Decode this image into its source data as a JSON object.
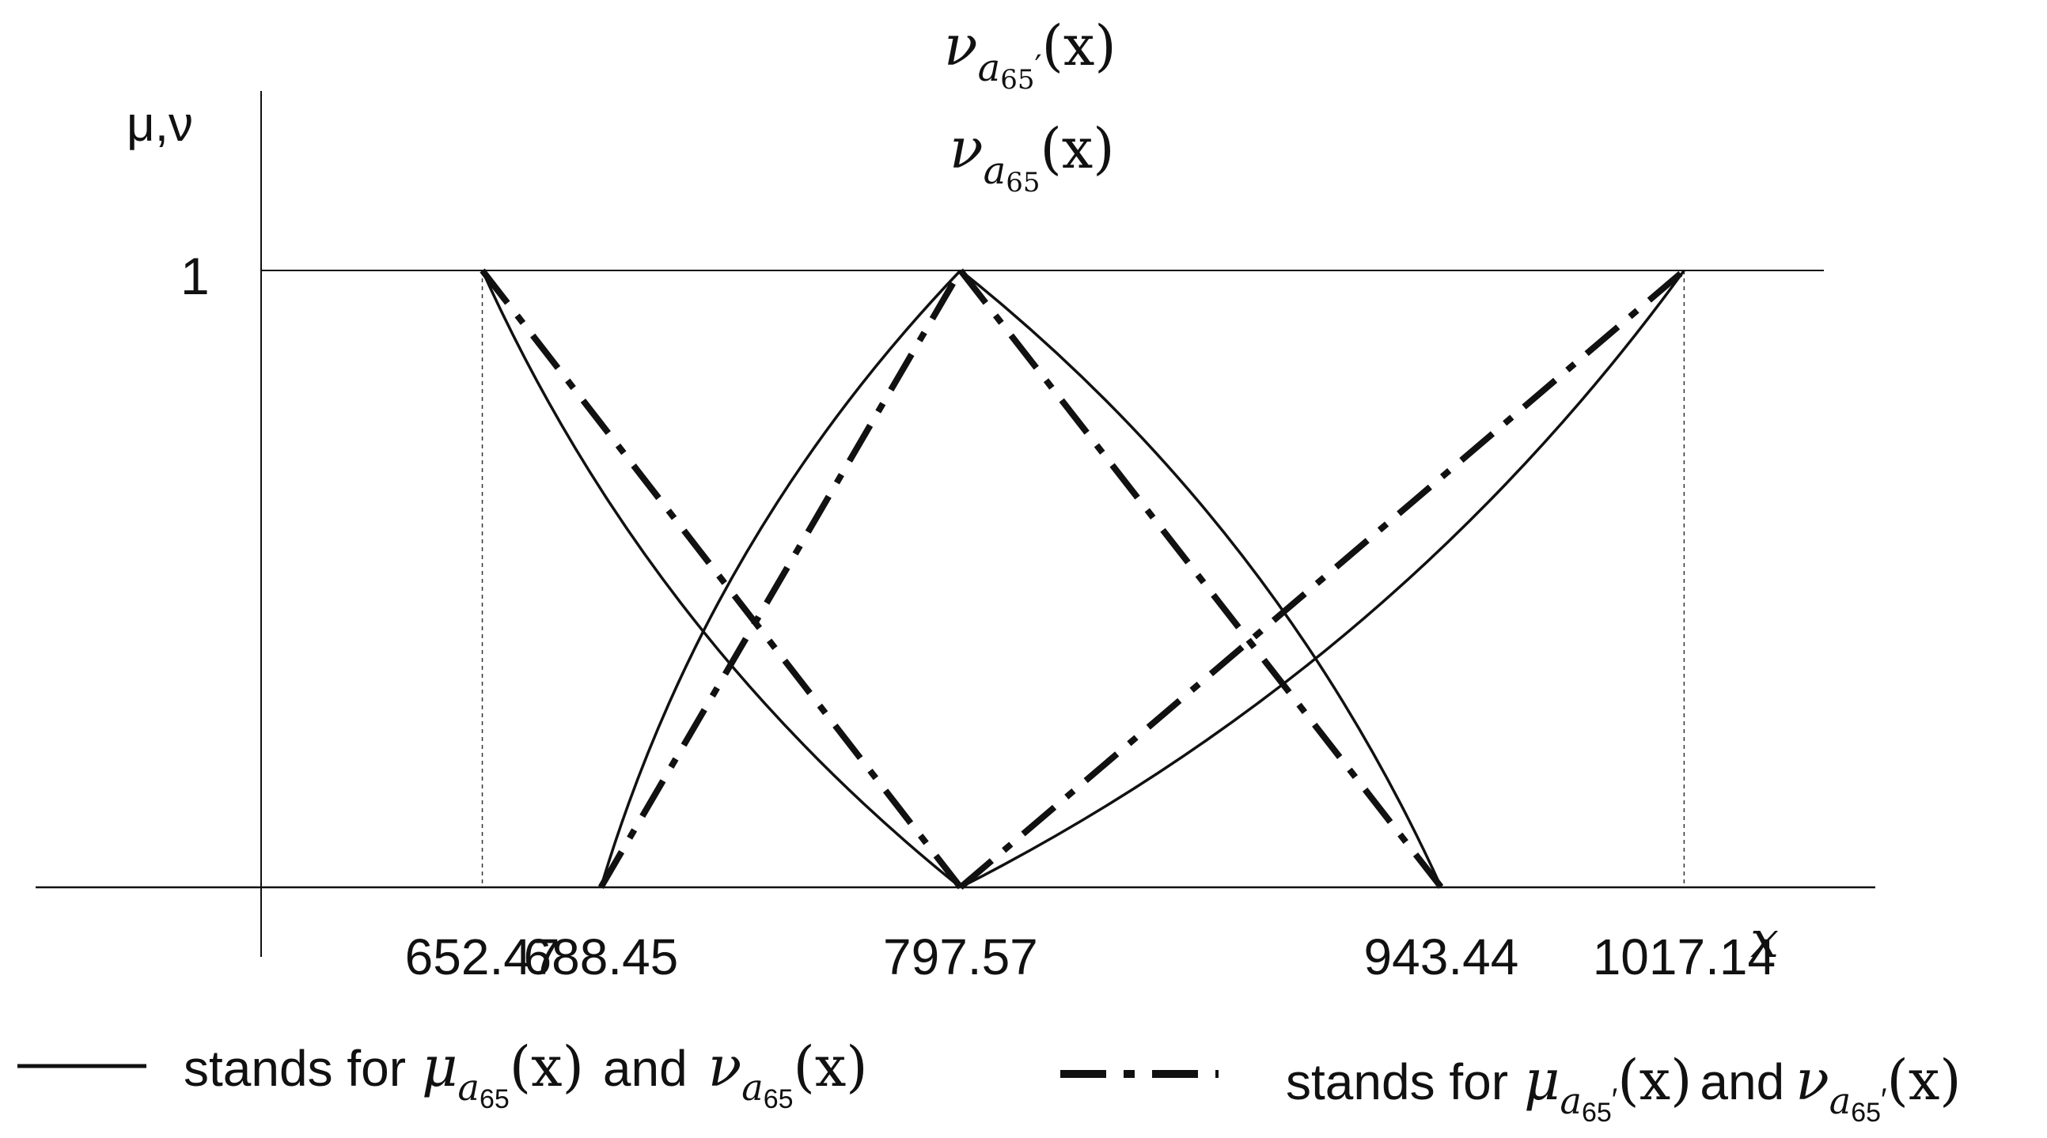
{
  "chart_data": {
    "type": "line",
    "title": "",
    "ylabel": "μ,ν",
    "xlabel": "x",
    "ytick": "1",
    "ylim": [
      0,
      1
    ],
    "xlim": [
      560,
      1120
    ],
    "xticks": [
      {
        "value": 652.47,
        "label": "652.47"
      },
      {
        "value": 688.45,
        "label": "688.45"
      },
      {
        "value": 797.57,
        "label": "797.57"
      },
      {
        "value": 943.44,
        "label": "943.44"
      },
      {
        "value": 1017.14,
        "label": "1017.14"
      }
    ],
    "peak_labels": {
      "upper": {
        "sym": "ν",
        "sub": "a",
        "subsub": "65",
        "prime": "′",
        "arg": "(x)"
      },
      "lower": {
        "sym": "ν",
        "sub": "a",
        "subsub": "65",
        "prime": "",
        "arg": "(x)"
      }
    },
    "series": [
      {
        "style": "solid",
        "points": [
          [
            652.47,
            1
          ],
          [
            797.57,
            0
          ]
        ]
      },
      {
        "style": "solid",
        "points": [
          [
            688.45,
            0
          ],
          [
            797.57,
            1
          ]
        ]
      },
      {
        "style": "solid",
        "points": [
          [
            797.57,
            1
          ],
          [
            943.44,
            0
          ]
        ]
      },
      {
        "style": "solid",
        "points": [
          [
            797.57,
            0
          ],
          [
            1017.14,
            1
          ]
        ]
      },
      {
        "style": "dash-dot",
        "points": [
          [
            652.47,
            1
          ],
          [
            797.57,
            0
          ]
        ]
      },
      {
        "style": "dash-dot",
        "points": [
          [
            688.45,
            0
          ],
          [
            797.57,
            1
          ]
        ]
      },
      {
        "style": "dash-dot",
        "points": [
          [
            797.57,
            1
          ],
          [
            943.44,
            0
          ]
        ]
      },
      {
        "style": "dash-dot",
        "points": [
          [
            797.57,
            0
          ],
          [
            1017.14,
            1
          ]
        ]
      }
    ],
    "legend": [
      {
        "style": "solid",
        "prefix": "stands for",
        "mu": "μ",
        "nu": "ν",
        "sub": "a",
        "subsub": "65",
        "prime": "",
        "arg": "(x)",
        "and": "and"
      },
      {
        "style": "dash-dot",
        "prefix": "stands for",
        "mu": "μ",
        "nu": "ν",
        "sub": "a",
        "subsub": "65",
        "prime": "′",
        "arg": "(x)",
        "and": "and"
      }
    ]
  }
}
